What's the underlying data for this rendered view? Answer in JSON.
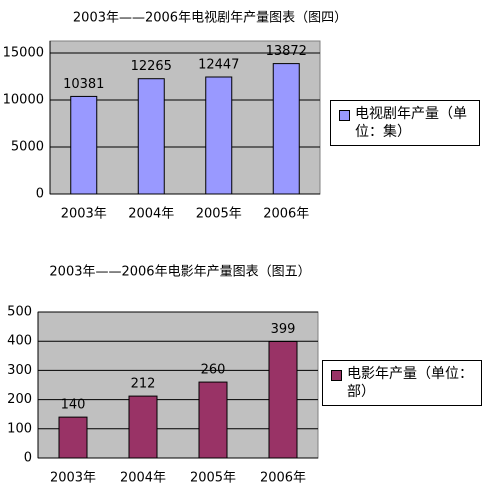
{
  "chart_data": [
    {
      "type": "bar",
      "title": "2003年——2006年电视剧年产量图表（图四）",
      "categories": [
        "2003年",
        "2004年",
        "2005年",
        "2006年"
      ],
      "series": [
        {
          "name": "电视剧年产量（单位：集）",
          "color": "#9999ff",
          "values": [
            10381,
            12265,
            12447,
            13872
          ]
        }
      ],
      "ylim": [
        0,
        15000
      ],
      "yticks": [
        0,
        5000,
        10000,
        15000
      ],
      "grid": true
    },
    {
      "type": "bar",
      "title": "2003年——2006年电影年产量图表（图五）",
      "categories": [
        "2003年",
        "2004年",
        "2005年",
        "2006年"
      ],
      "series": [
        {
          "name": "电影年产量（单位：部）",
          "color": "#993366",
          "values": [
            140,
            212,
            260,
            399
          ]
        }
      ],
      "ylim": [
        0,
        500
      ],
      "yticks": [
        0,
        100,
        200,
        300,
        400,
        500
      ],
      "grid": true
    }
  ]
}
